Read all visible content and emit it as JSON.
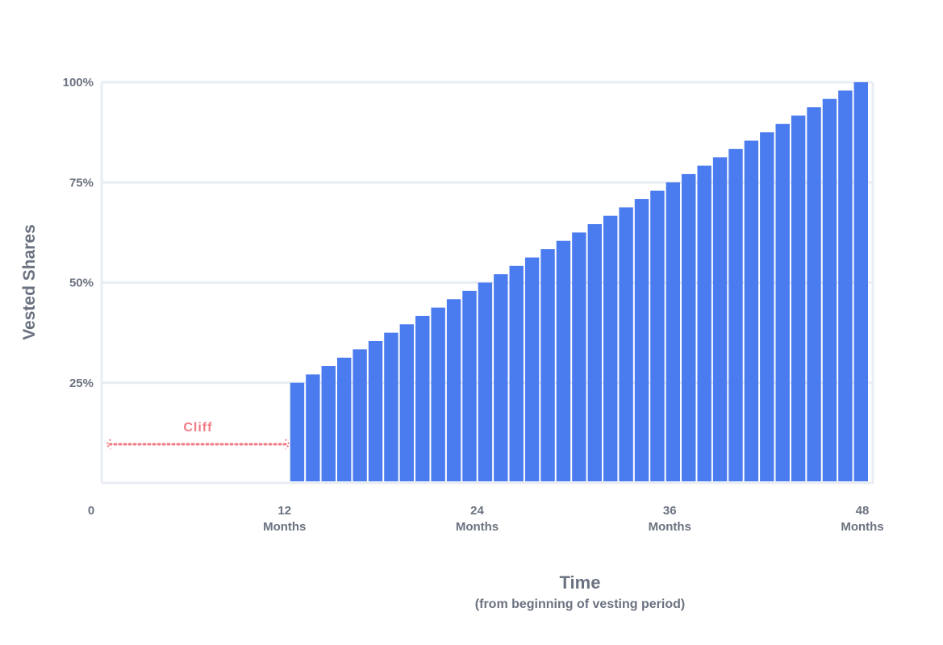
{
  "chart_data": {
    "type": "bar",
    "x_start": 12,
    "x_end": 48,
    "values": [
      25,
      27.083,
      29.167,
      31.25,
      33.333,
      35.417,
      37.5,
      39.583,
      41.667,
      43.75,
      45.833,
      47.917,
      50,
      52.083,
      54.167,
      56.25,
      58.333,
      60.417,
      62.5,
      64.583,
      66.667,
      68.75,
      70.833,
      72.917,
      75,
      77.083,
      79.167,
      81.25,
      83.333,
      85.417,
      87.5,
      89.583,
      91.667,
      93.75,
      95.833,
      97.917,
      100
    ],
    "xlim": [
      0,
      48
    ],
    "ylim": [
      0,
      100
    ],
    "x_ticks": [
      {
        "value": 0,
        "label": "0",
        "sublabel": ""
      },
      {
        "value": 12,
        "label": "12",
        "sublabel": "Months"
      },
      {
        "value": 24,
        "label": "24",
        "sublabel": "Months"
      },
      {
        "value": 36,
        "label": "36",
        "sublabel": "Months"
      },
      {
        "value": 48,
        "label": "48",
        "sublabel": "Months"
      }
    ],
    "y_ticks": [
      {
        "value": 25,
        "label": "25%"
      },
      {
        "value": 50,
        "label": "50%"
      },
      {
        "value": 75,
        "label": "75%"
      },
      {
        "value": 100,
        "label": "100%"
      }
    ],
    "xlabel": "Time",
    "xlabel_sub": "(from beginning of vesting period)",
    "ylabel": "Vested Shares",
    "grid": true,
    "annotation": {
      "label": "Cliff",
      "from": 0,
      "to": 12
    },
    "colors": {
      "bar": "#4a7bef",
      "grid": "#e8edf4",
      "text": "#6b7280",
      "cliff": "#f07b84"
    }
  }
}
